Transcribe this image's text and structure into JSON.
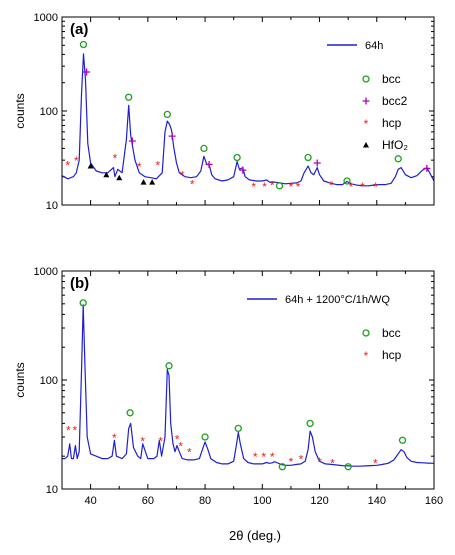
{
  "figure": {
    "xlabel": "2θ (deg.)"
  },
  "chart_data": [
    {
      "type": "line",
      "panel_label": "(a)",
      "ylabel": "counts",
      "xlabel": "",
      "yscale": "log",
      "xlim": [
        30,
        160
      ],
      "ylim": [
        10,
        1000
      ],
      "x_ticks": [],
      "y_ticks": [
        10,
        100,
        1000
      ],
      "legend_placement": "top-right",
      "series": [
        {
          "name": "64h",
          "color": "#1f1fcf",
          "x": [
            30,
            32,
            34,
            35,
            36,
            36.8,
            37.5,
            38.2,
            39,
            40,
            42,
            44,
            46,
            48,
            48.5,
            49.5,
            51,
            52.5,
            53.3,
            54,
            54.6,
            55.5,
            57,
            58,
            59,
            61,
            63,
            65,
            66,
            66.8,
            67.6,
            68.3,
            69,
            70,
            71,
            73,
            75,
            77,
            78.5,
            79.6,
            80.6,
            81.4,
            82.3,
            83.5,
            86,
            88,
            90,
            91.2,
            92,
            93.2,
            94,
            95.5,
            98,
            100,
            101.5,
            102.5,
            103.5,
            104.5,
            106,
            108,
            110,
            112,
            113.5,
            114.6,
            116,
            117,
            118,
            119.2,
            120,
            121.5,
            124,
            126,
            128,
            129.6,
            131,
            133,
            135,
            137,
            139,
            141,
            143,
            145,
            146.5,
            147.5,
            148.5,
            150,
            152,
            154,
            156,
            157.5,
            158.5,
            160
          ],
          "values": [
            20.5,
            19,
            20,
            22,
            30,
            150,
            405,
            215,
            45,
            28,
            23,
            22,
            22,
            25,
            20,
            24,
            22,
            50,
            115,
            55,
            43,
            30,
            22,
            21,
            20,
            19.5,
            19,
            22,
            60,
            78,
            72,
            62,
            42,
            28,
            22,
            20,
            19.5,
            20,
            23,
            33,
            27,
            27,
            21,
            19,
            18,
            18.5,
            20,
            29,
            24,
            25,
            20,
            18.5,
            18,
            18,
            18.5,
            17.5,
            17.6,
            17.5,
            17.2,
            16.8,
            17,
            17.2,
            18,
            22,
            26,
            22,
            21,
            25,
            21,
            18,
            17,
            16.5,
            16.5,
            17.8,
            16.8,
            16.3,
            16,
            16,
            16.3,
            16.5,
            16.5,
            17,
            20,
            24,
            25,
            21,
            19.5,
            20.5,
            23.5,
            25,
            22,
            18
          ]
        }
      ],
      "markers": [
        {
          "name": "bcc",
          "symbol": "o",
          "color": "#1fa01f",
          "x": [
            37.5,
            53.3,
            66.8,
            79.6,
            91.2,
            106,
            116,
            129.6,
            147.5
          ],
          "values": [
            510,
            140,
            92,
            40,
            32,
            16,
            32,
            18,
            31
          ]
        },
        {
          "name": "bcc2",
          "symbol": "+",
          "color": "#b000c0",
          "x": [
            38.6,
            54.6,
            68.5,
            81.4,
            93.2,
            119.2,
            157.5
          ],
          "values": [
            260,
            48,
            54,
            27,
            23.5,
            28,
            24.5
          ]
        },
        {
          "name": "hcp",
          "symbol": "*",
          "color": "#e82020",
          "x": [
            32,
            35,
            48.5,
            57,
            63.5,
            72,
            75.5,
            97,
            100.8,
            103.5,
            110,
            112.5,
            124,
            131,
            135,
            139.5
          ],
          "values": [
            27,
            30,
            32,
            26,
            27,
            21,
            17,
            16,
            16,
            16.5,
            16,
            16,
            16.5,
            16,
            16,
            16
          ]
        },
        {
          "name": "HfO₂",
          "symbol": "^",
          "color": "#000000",
          "x": [
            40,
            45.5,
            50,
            58.5,
            61.5
          ],
          "values": [
            26,
            21,
            19.5,
            17.5,
            17.5
          ]
        }
      ]
    },
    {
      "type": "line",
      "panel_label": "(b)",
      "ylabel": "counts",
      "xlabel": "2θ (deg.)",
      "yscale": "log",
      "xlim": [
        30,
        160
      ],
      "ylim": [
        10,
        1000
      ],
      "x_ticks": [
        40,
        60,
        80,
        100,
        120,
        140,
        160
      ],
      "y_ticks": [
        10,
        100,
        1000
      ],
      "legend_placement": "top-right",
      "series": [
        {
          "name": "64h + 1200°C/1h/WQ",
          "color": "#1f1fcf",
          "x": [
            30,
            31,
            32,
            32.7,
            33.3,
            34,
            34.7,
            35.3,
            36,
            36.8,
            37.4,
            38,
            38.8,
            40,
            42,
            44,
            46,
            47.5,
            48.3,
            49,
            51,
            52.5,
            53.3,
            54,
            55,
            56.5,
            57.5,
            58.2,
            60,
            62,
            63.2,
            64,
            64.8,
            66,
            66.8,
            67.4,
            68,
            68.8,
            69.5,
            70.2,
            71,
            72,
            74,
            76,
            78,
            79.3,
            80,
            81,
            82,
            84,
            86,
            88,
            90,
            91,
            91.6,
            92.3,
            93.5,
            95,
            97,
            98.5,
            100,
            101.5,
            102.5,
            103.5,
            104.3,
            105,
            106.5,
            108,
            110,
            112,
            113.5,
            115,
            116,
            116.7,
            117.5,
            118.5,
            120,
            122,
            124,
            126,
            128,
            130,
            132,
            134,
            136,
            138,
            140,
            142,
            144,
            146,
            147.5,
            148.5,
            149.5,
            150.5,
            152,
            154,
            156,
            158,
            160
          ],
          "values": [
            19,
            19,
            20,
            26,
            19,
            19,
            25,
            19,
            22,
            120,
            490,
            140,
            30,
            21,
            20,
            19,
            19,
            20,
            28,
            20,
            19,
            21,
            36,
            40,
            24,
            20,
            19,
            26,
            19,
            19,
            20,
            28,
            20,
            30,
            125,
            110,
            40,
            26,
            22,
            25,
            22,
            19,
            18.5,
            18.5,
            19,
            24,
            27,
            23,
            19,
            17.5,
            17,
            17,
            18,
            26,
            33,
            26,
            19,
            17.5,
            17,
            17,
            17,
            17.5,
            17.2,
            17.4,
            17.8,
            17.5,
            16.8,
            16.5,
            16.5,
            16.8,
            17,
            18,
            23,
            34,
            30,
            22,
            18,
            17,
            16.8,
            16.6,
            16.4,
            16.3,
            16.2,
            16.2,
            16.3,
            16.4,
            16.5,
            16.8,
            17.2,
            18.5,
            21,
            23,
            22,
            19.5,
            18,
            17.5,
            17.4,
            17.3,
            17.2
          ]
        }
      ],
      "markers": [
        {
          "name": "bcc",
          "symbol": "o",
          "color": "#1fa01f",
          "x": [
            37.4,
            53.8,
            67.4,
            80,
            91.6,
            107,
            116.7,
            130,
            149
          ],
          "values": [
            510,
            50,
            135,
            30,
            36,
            16,
            40,
            16,
            28
          ]
        },
        {
          "name": "hcp",
          "symbol": "*",
          "color": "#e82020",
          "x": [
            32.2,
            34.5,
            48.3,
            58.2,
            64.5,
            70.2,
            71.5,
            74.5,
            97.5,
            100.5,
            103.5,
            110,
            113.5,
            120,
            124.5,
            139.5
          ],
          "values": [
            35,
            35,
            30,
            28,
            28,
            29,
            25,
            22,
            20,
            20,
            20,
            18,
            19,
            18,
            17.5,
            17.5
          ]
        }
      ]
    }
  ]
}
